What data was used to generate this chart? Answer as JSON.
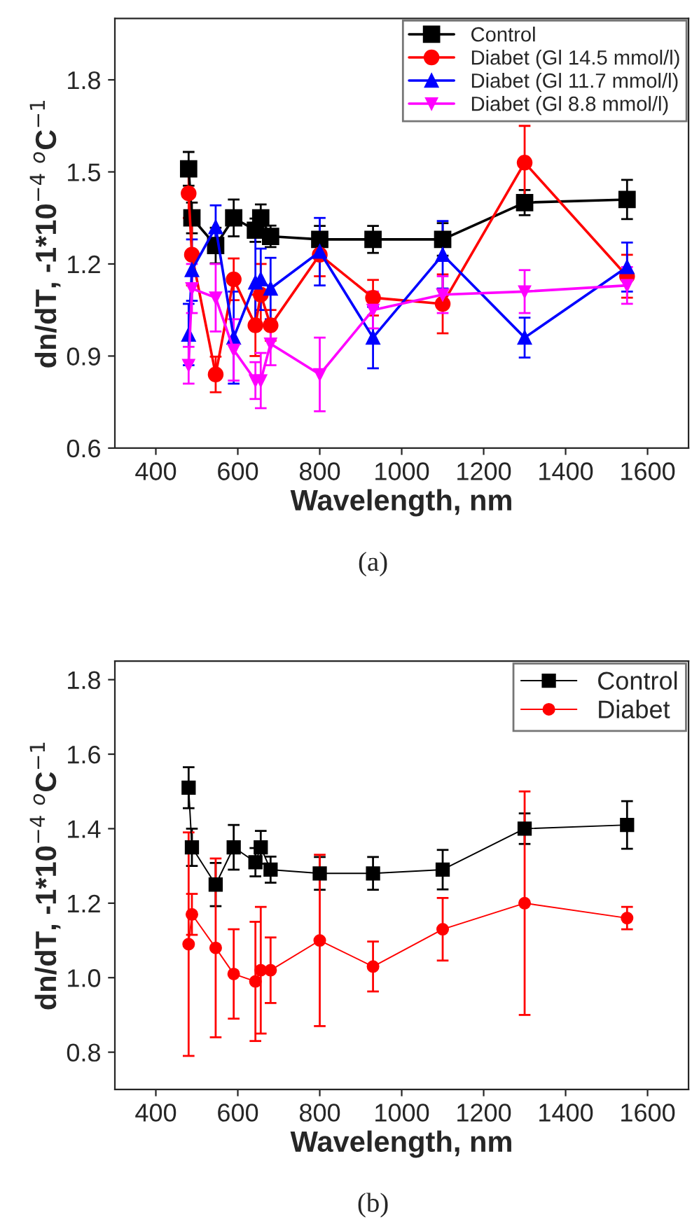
{
  "chart_data": [
    {
      "type": "line",
      "xlabel": "Wavelength, nm",
      "ylabel": "dn/dT, -1*10$^{−4}$ $^{o}$C$^{−1}$",
      "x": [
        480,
        488,
        546,
        590,
        643,
        656,
        680,
        800,
        930,
        1100,
        1300,
        1550
      ],
      "xlim": [
        300,
        1700
      ],
      "xticks": [
        400,
        600,
        800,
        1000,
        1200,
        1400,
        1600
      ],
      "ylim": [
        0.6,
        2.0
      ],
      "yticks": [
        0.6,
        0.9,
        1.2,
        1.5,
        1.8
      ],
      "legend": "top right",
      "annotations": [
        "(a)"
      ],
      "series": [
        {
          "name": "Control",
          "color": "#000000",
          "marker": "square",
          "values": [
            1.51,
            1.35,
            1.26,
            1.35,
            1.31,
            1.35,
            1.29,
            1.28,
            1.28,
            1.28,
            1.4,
            1.41
          ],
          "errors": [
            0.055,
            0.05,
            0.058,
            0.06,
            0.038,
            0.044,
            0.035,
            0.044,
            0.044,
            0.053,
            0.041,
            0.064
          ]
        },
        {
          "name": "Diabet (Gl 14.5 mmol/l)",
          "color": "#ff0000",
          "marker": "circle",
          "values": [
            1.43,
            1.23,
            0.84,
            1.15,
            1.0,
            1.1,
            1.0,
            1.23,
            1.09,
            1.07,
            1.53,
            1.16
          ],
          "errors": [
            0.08,
            0.1,
            0.058,
            0.068,
            0.1,
            0.1,
            0.05,
            0.07,
            0.058,
            0.096,
            0.12,
            0.07
          ]
        },
        {
          "name": "Diabet (Gl 11.7 mmol/l)",
          "color": "#0000ff",
          "marker": "triangle",
          "values": [
            0.97,
            1.18,
            1.32,
            0.96,
            1.14,
            1.15,
            1.12,
            1.24,
            0.96,
            1.23,
            0.96,
            1.19
          ],
          "errors": [
            0.1,
            0.1,
            0.071,
            0.15,
            0.15,
            0.1,
            0.1,
            0.11,
            0.1,
            0.11,
            0.065,
            0.08
          ]
        },
        {
          "name": "Diabet (Gl 8.8 mmol/l)",
          "color": "#ff00ff",
          "marker": "triangle_down",
          "values": [
            0.87,
            1.12,
            1.09,
            0.92,
            0.82,
            0.82,
            0.94,
            0.84,
            1.05,
            1.1,
            1.11,
            1.13
          ],
          "errors": [
            0.06,
            0.08,
            0.11,
            0.1,
            0.06,
            0.09,
            0.07,
            0.12,
            0.06,
            0.06,
            0.07,
            0.06
          ]
        }
      ]
    },
    {
      "type": "line",
      "xlabel": "Wavelength, nm",
      "ylabel": "dn/dT, -1*10$^{−4}$ $^{o}$C$^{−1}$",
      "x": [
        480,
        488,
        546,
        590,
        643,
        656,
        680,
        800,
        930,
        1100,
        1300,
        1550
      ],
      "xlim": [
        300,
        1700
      ],
      "xticks": [
        400,
        600,
        800,
        1000,
        1200,
        1400,
        1600
      ],
      "ylim": [
        0.7,
        1.85
      ],
      "yticks": [
        0.8,
        {
          "value": 1.0,
          "label": "1.0"
        },
        1.2,
        1.4,
        1.6,
        1.8
      ],
      "legend": "top right",
      "annotations": [
        "(b)"
      ],
      "series": [
        {
          "name": "Control",
          "color": "#000000",
          "marker": "square",
          "values": [
            1.51,
            1.35,
            1.25,
            1.35,
            1.31,
            1.35,
            1.29,
            1.28,
            1.28,
            1.29,
            1.4,
            1.41
          ],
          "errors": [
            0.055,
            0.05,
            0.058,
            0.06,
            0.038,
            0.044,
            0.035,
            0.044,
            0.044,
            0.053,
            0.041,
            0.064
          ]
        },
        {
          "name": "Diabet",
          "color": "#ff0000",
          "marker": "circle",
          "values": [
            1.09,
            1.17,
            1.08,
            1.01,
            0.99,
            1.02,
            1.02,
            1.1,
            1.03,
            1.13,
            1.2,
            1.16
          ],
          "errors": [
            0.3,
            0.055,
            0.24,
            0.12,
            0.16,
            0.17,
            0.088,
            0.23,
            0.067,
            0.084,
            0.3,
            0.03
          ]
        }
      ]
    }
  ]
}
